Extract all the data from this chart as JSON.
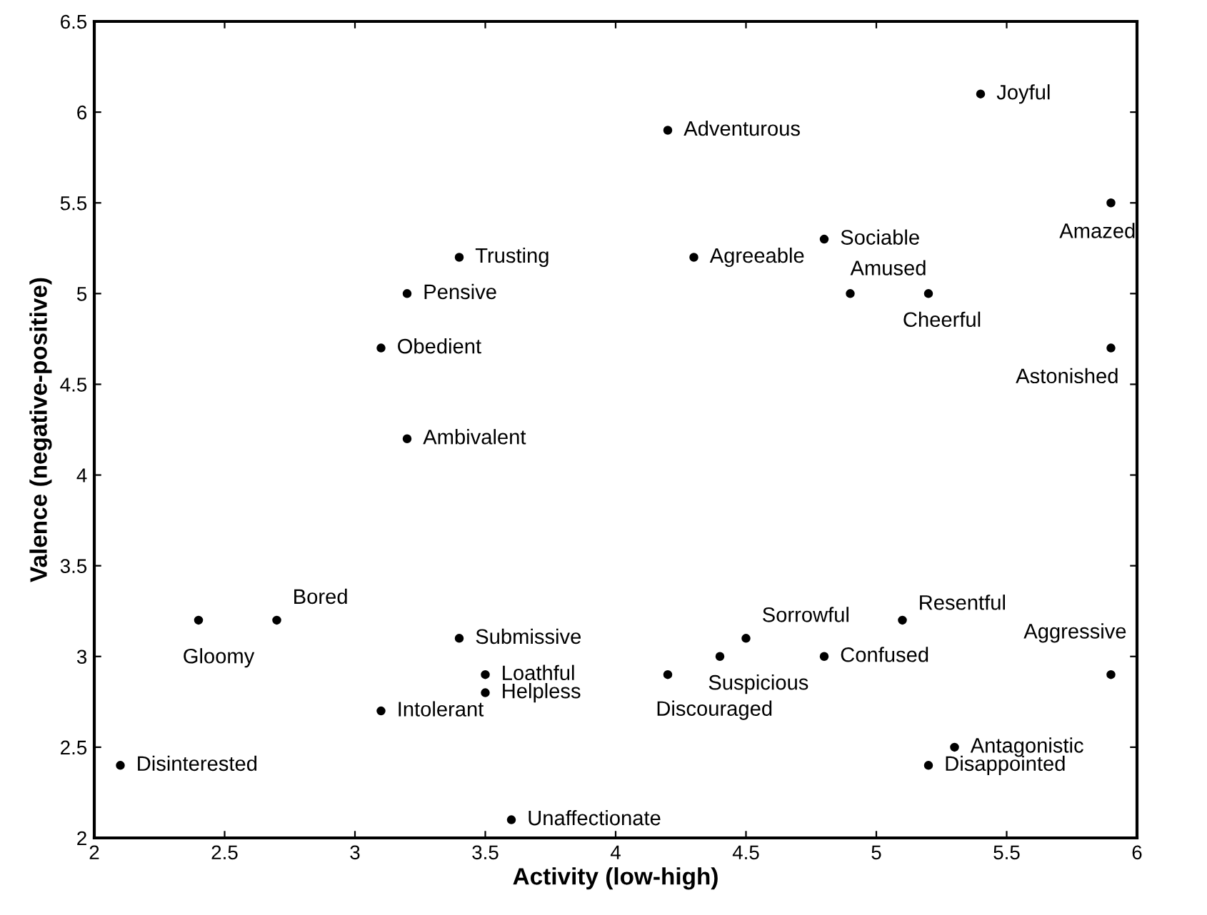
{
  "chart_data": {
    "type": "scatter",
    "xlabel": "Activity (low-high)",
    "ylabel": "Valence (negative-positive)",
    "x": [
      5.4,
      4.2,
      5.9,
      3.4,
      4.3,
      4.8,
      4.9,
      5.2,
      3.2,
      3.1,
      5.9,
      3.2,
      2.7,
      2.4,
      3.4,
      3.5,
      3.5,
      3.1,
      2.1,
      3.6,
      4.5,
      4.4,
      4.2,
      4.8,
      5.1,
      5.9,
      5.3,
      5.2
    ],
    "values": [
      6.1,
      5.9,
      5.5,
      5.2,
      5.2,
      5.3,
      5.0,
      5.0,
      5.0,
      4.7,
      4.7,
      4.2,
      3.2,
      3.2,
      3.1,
      2.9,
      2.8,
      2.7,
      2.4,
      2.1,
      3.1,
      3.0,
      2.9,
      3.0,
      3.2,
      2.9,
      2.5,
      2.4
    ],
    "value_labels": [
      "Joyful",
      "Adventurous",
      "Amazed",
      "Trusting",
      "Agreeable",
      "Sociable",
      "Amused",
      "Cheerful",
      "Pensive",
      "Obedient",
      "Astonished",
      "Ambivalent",
      "Bored",
      "Gloomy",
      "Submissive",
      "Loathful",
      "Helpless",
      "Intolerant",
      "Disinterested",
      "Unaffectionate",
      "Sorrowful",
      "Suspicious",
      "Discouraged",
      "Confused",
      "Resentful",
      "Aggressive",
      "Antagonistic",
      "Disappointed"
    ],
    "color": "#000000",
    "marker": "circle",
    "grid": false,
    "xlim": [
      2,
      6
    ],
    "xticks": [
      2,
      2.5,
      3,
      3.5,
      4,
      4.5,
      5,
      5.5,
      6
    ],
    "ylim": [
      2,
      6.5
    ],
    "yticks": [
      2,
      2.5,
      3,
      3.5,
      4,
      4.5,
      5,
      5.5,
      6,
      6.5
    ]
  }
}
